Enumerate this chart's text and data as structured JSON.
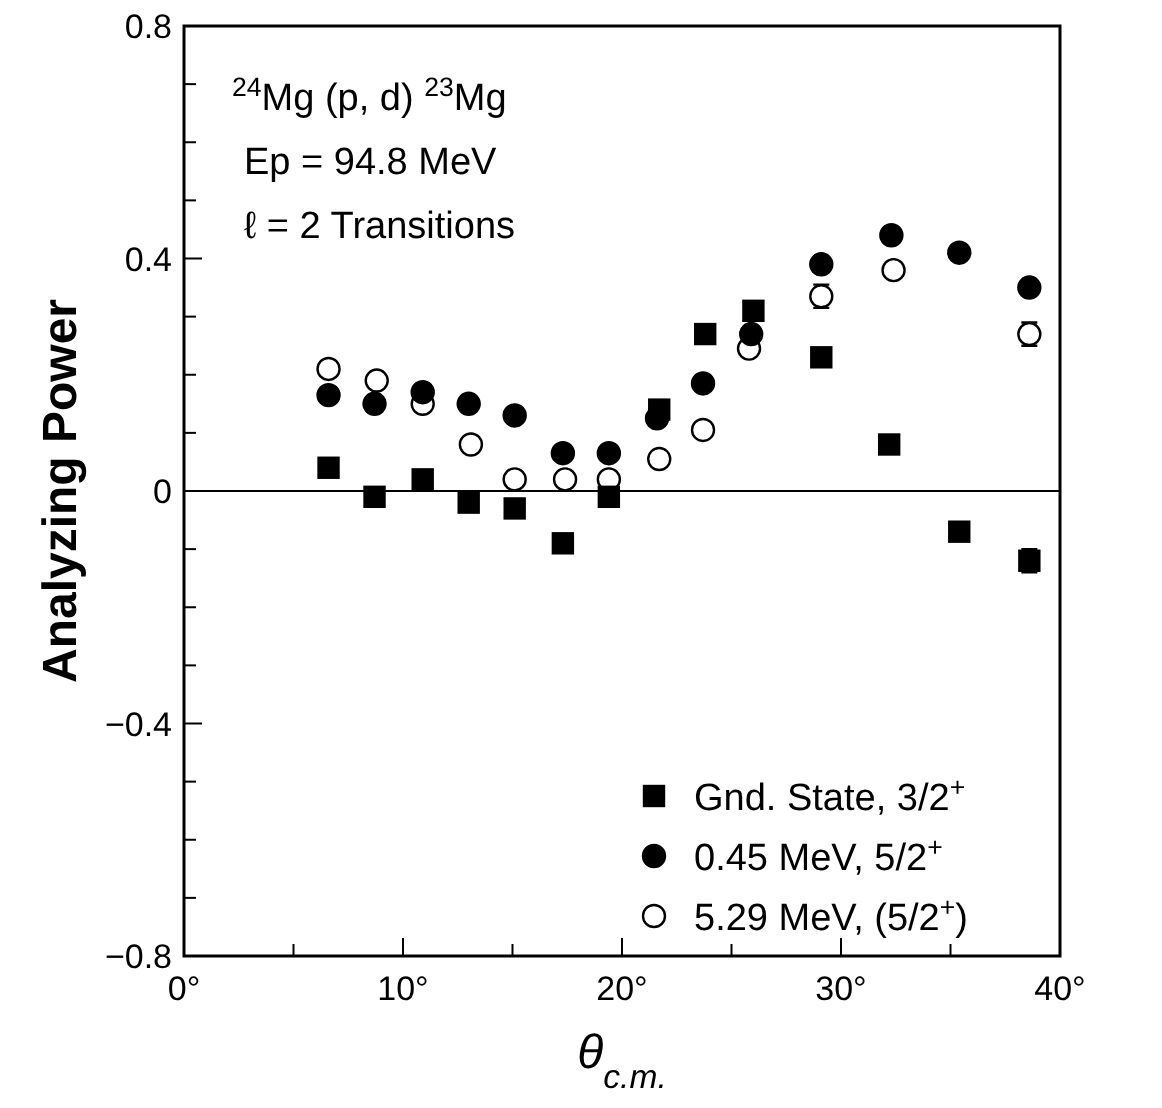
{
  "chart_data": {
    "type": "scatter",
    "xlabel": "θ$_{c.m.}$",
    "ylabel": "Analyzing Power",
    "annotations": [
      "$^{24}$Mg (p, d) $^{23}$Mg",
      "Ep = 94.8 MeV",
      "ℓ = 2 Transitions"
    ],
    "xlim": [
      0,
      40
    ],
    "ylim": [
      -0.8,
      0.8
    ],
    "xticks": [
      {
        "value": 0,
        "label": "0°"
      },
      {
        "value": 5,
        "label": null
      },
      {
        "value": 10,
        "label": "10°"
      },
      {
        "value": 15,
        "label": null
      },
      {
        "value": 20,
        "label": "20°"
      },
      {
        "value": 25,
        "label": null
      },
      {
        "value": 30,
        "label": "30°"
      },
      {
        "value": 35,
        "label": null
      },
      {
        "value": 40,
        "label": "40°"
      }
    ],
    "yticks": [
      {
        "value": -0.8,
        "label": "−0.8"
      },
      {
        "value": -0.7,
        "label": null
      },
      {
        "value": -0.6,
        "label": null
      },
      {
        "value": -0.5,
        "label": null
      },
      {
        "value": -0.4,
        "label": "−0.4"
      },
      {
        "value": -0.3,
        "label": null
      },
      {
        "value": -0.2,
        "label": null
      },
      {
        "value": -0.1,
        "label": null
      },
      0,
      {
        "value": 0.1,
        "label": null
      },
      {
        "value": 0.2,
        "label": null
      },
      {
        "value": 0.3,
        "label": null
      },
      0.4,
      {
        "value": 0.5,
        "label": null
      },
      {
        "value": 0.6,
        "label": null
      },
      {
        "value": 0.7,
        "label": null
      },
      0.8
    ],
    "ref_lines": [
      {
        "axis": "y",
        "value": 0,
        "label": null,
        "color": "#000000"
      }
    ],
    "grid": false,
    "legend": "bottom right",
    "series": [
      {
        "name": "Gnd. State, 3/2$^{+}$",
        "color": "#000000",
        "marker": "square",
        "x": [
          6.6,
          8.7,
          10.9,
          13.0,
          15.1,
          17.3,
          19.4,
          21.7,
          23.8,
          26.0,
          29.1,
          32.2,
          35.4,
          38.6
        ],
        "values": [
          0.04,
          -0.01,
          0.02,
          -0.02,
          -0.03,
          -0.09,
          -0.01,
          0.14,
          0.27,
          0.31,
          0.23,
          0.08,
          -0.07,
          -0.12
        ],
        "errors": [
          null,
          null,
          null,
          null,
          null,
          null,
          null,
          null,
          null,
          null,
          null,
          null,
          null,
          0.02
        ]
      },
      {
        "name": "0.45 MeV, 5/2$^{+}$",
        "color": "#000000",
        "marker": "circle",
        "x": [
          6.6,
          8.7,
          10.9,
          13.0,
          15.1,
          17.3,
          19.4,
          21.6,
          23.7,
          25.9,
          29.1,
          32.3,
          35.4,
          38.6
        ],
        "values": [
          0.165,
          0.15,
          0.17,
          0.15,
          0.13,
          0.065,
          0.065,
          0.125,
          0.185,
          0.27,
          0.39,
          0.44,
          0.41,
          0.35
        ]
      },
      {
        "name": "5.29 MeV, (5/2$^{+}$)",
        "color": "#ffffff",
        "marker": "circle",
        "x": [
          6.6,
          8.8,
          10.9,
          13.1,
          15.1,
          17.4,
          19.4,
          21.7,
          23.7,
          25.8,
          29.1,
          32.4,
          38.6
        ],
        "values": [
          0.21,
          0.19,
          0.15,
          0.08,
          0.02,
          0.02,
          0.02,
          0.055,
          0.105,
          0.245,
          0.335,
          0.38,
          0.27
        ],
        "errors": [
          null,
          null,
          null,
          null,
          null,
          null,
          null,
          null,
          null,
          null,
          0.02,
          null,
          0.02
        ]
      }
    ]
  }
}
